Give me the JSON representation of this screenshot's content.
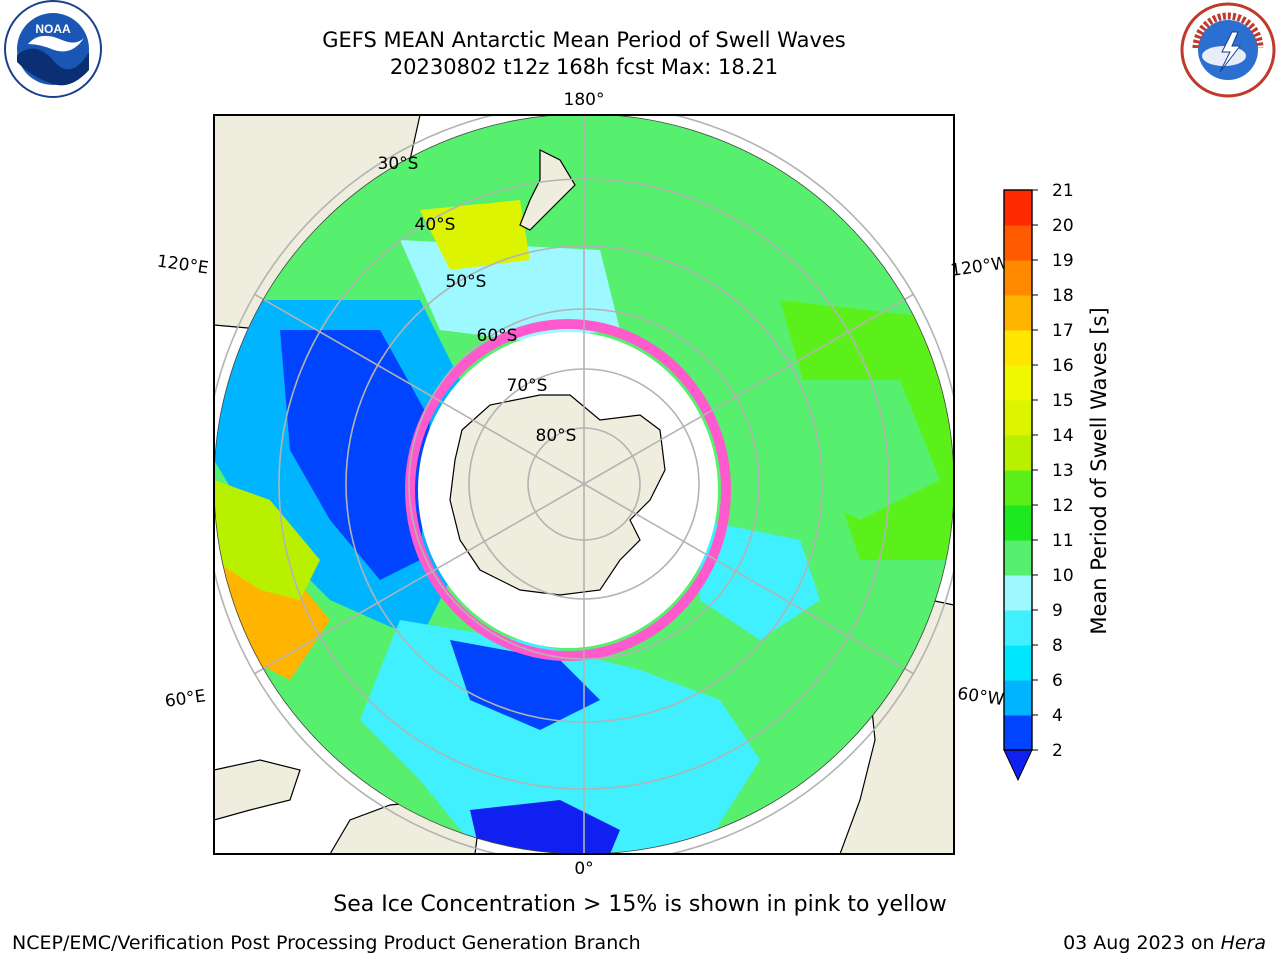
{
  "header": {
    "title_line1": "GEFS MEAN Antarctic Mean Period of Swell Waves",
    "title_line2": "20230802 t12z 168h fcst   Max: 18.21"
  },
  "logos": {
    "left": "NOAA",
    "right": "NATIONAL WEATHER SERVICE"
  },
  "map": {
    "projection": "south-polar-stereographic",
    "meridian_labels": {
      "top": "180°",
      "bottom": "0°",
      "left_upper": "120°E",
      "left_lower": "60°E",
      "right_upper": "120°W",
      "right_lower": "60°W"
    },
    "parallel_labels": [
      "30°S",
      "40°S",
      "50°S",
      "60°S",
      "70°S",
      "80°S"
    ],
    "ocean_colors_legend_ref": "colorbar"
  },
  "colorbar": {
    "label": "Mean Period of Swell Waves [s]",
    "ticks": [
      "2",
      "4",
      "6",
      "8",
      "9",
      "10",
      "11",
      "12",
      "13",
      "14",
      "15",
      "16",
      "17",
      "18",
      "19",
      "20",
      "21"
    ],
    "colors": [
      "#0044ff",
      "#00b4ff",
      "#00e6ff",
      "#40f0ff",
      "#9ef8ff",
      "#56f06e",
      "#1ee81e",
      "#5cf01a",
      "#b8f000",
      "#dcf400",
      "#f0f800",
      "#ffe600",
      "#ffb400",
      "#ff8a00",
      "#ff5a00",
      "#ff2a00"
    ],
    "extend_color": "#1020f0"
  },
  "footer": {
    "note": "Sea Ice Concentration > 15% is shown in pink to yellow",
    "credit": "NCEP/EMC/Verification Post Processing Product Generation Branch",
    "date": "03 Aug 2023 on",
    "host": "Hera"
  }
}
